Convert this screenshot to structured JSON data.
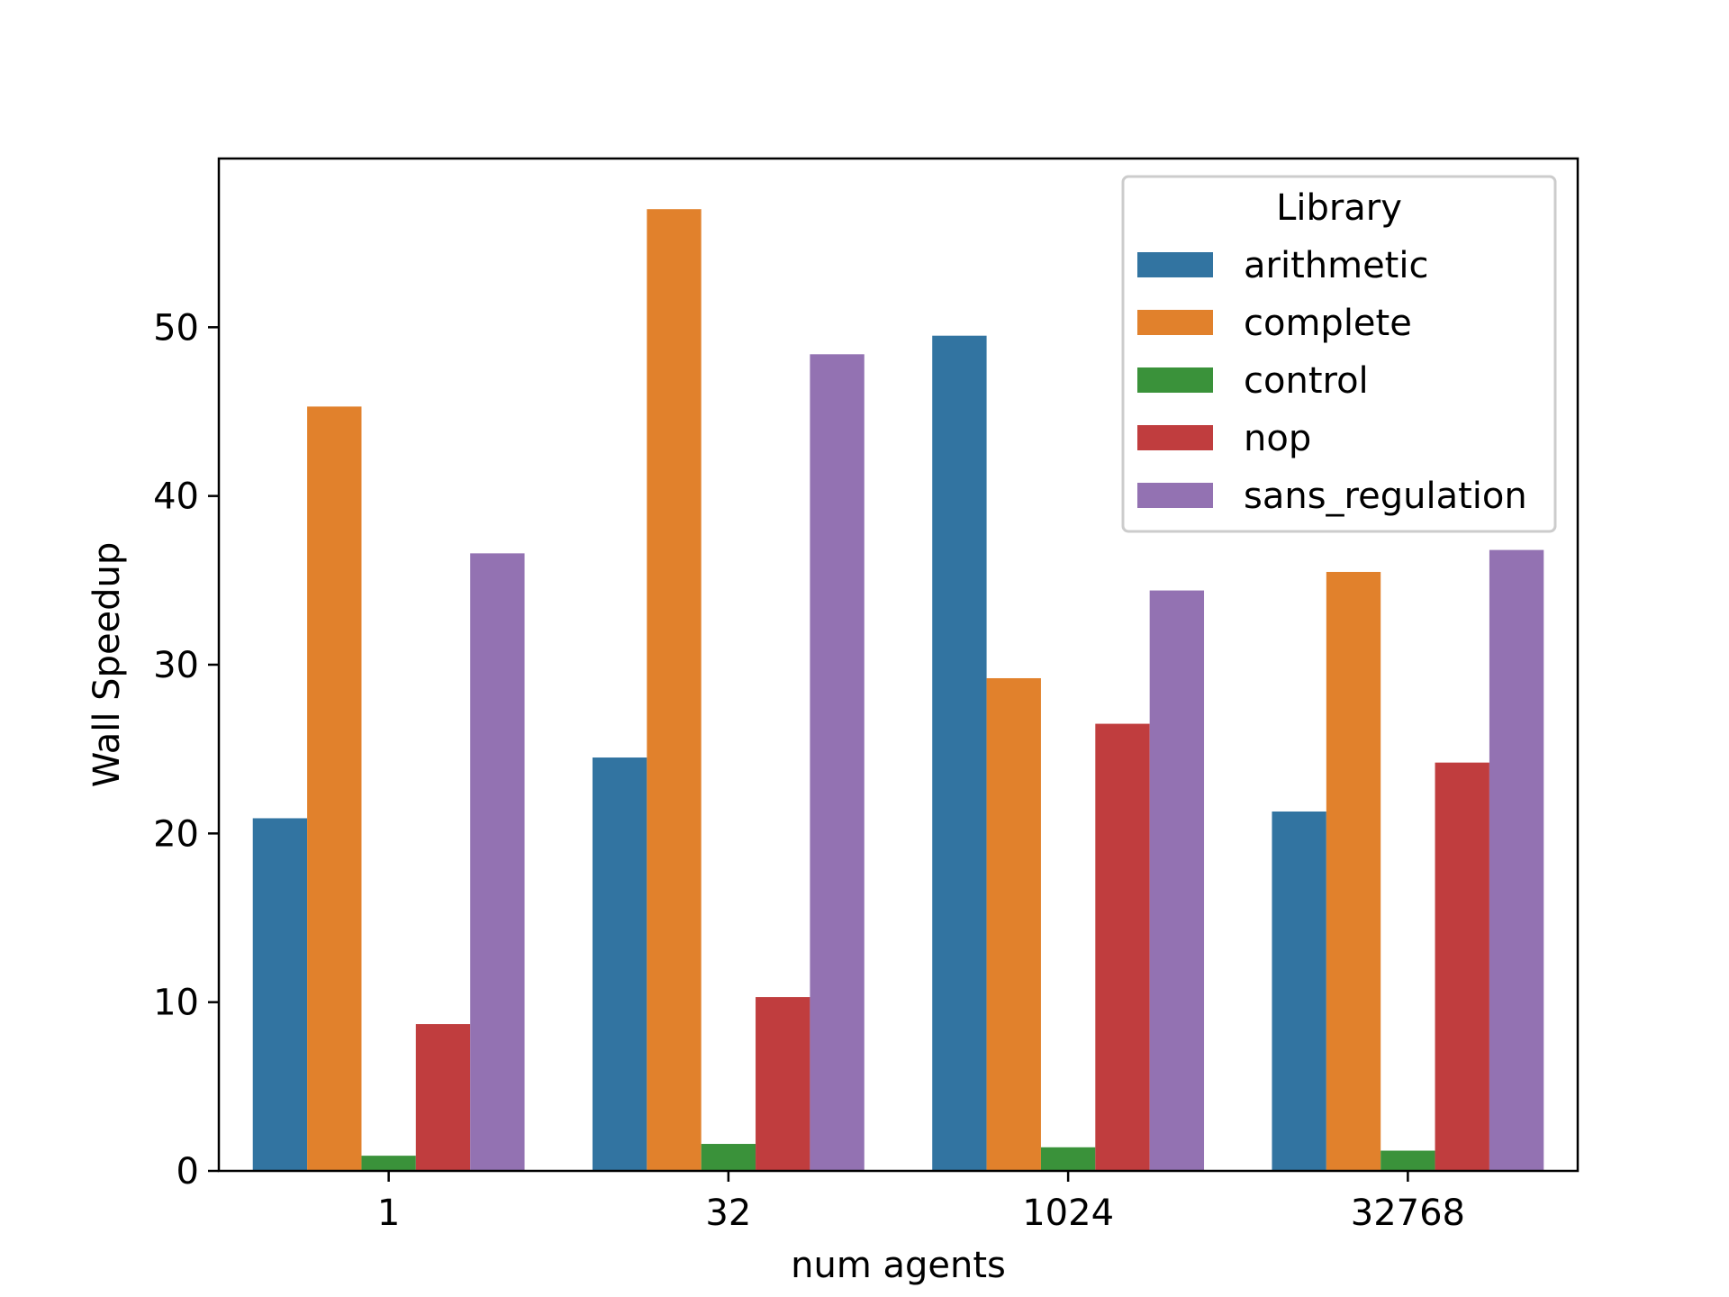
{
  "chart_data": {
    "type": "bar",
    "title": "",
    "xlabel": "num agents",
    "ylabel": "Wall Speedup",
    "categories": [
      "1",
      "32",
      "1024",
      "32768"
    ],
    "ylim": [
      0,
      60
    ],
    "yticks": [
      0,
      10,
      20,
      30,
      40,
      50
    ],
    "grid": false,
    "legend": {
      "title": "Library",
      "placement": "top-right"
    },
    "series": [
      {
        "name": "arithmetic",
        "color": "#3274a1",
        "values": [
          20.9,
          24.5,
          49.5,
          21.3
        ]
      },
      {
        "name": "complete",
        "color": "#e1812c",
        "values": [
          45.3,
          57.0,
          29.2,
          35.5
        ]
      },
      {
        "name": "control",
        "color": "#3a923a",
        "values": [
          0.9,
          1.6,
          1.4,
          1.2
        ]
      },
      {
        "name": "nop",
        "color": "#c03d3e",
        "values": [
          8.7,
          10.3,
          26.5,
          24.2
        ]
      },
      {
        "name": "sans_regulation",
        "color": "#9372b2",
        "values": [
          36.6,
          48.4,
          34.4,
          36.8
        ]
      }
    ]
  }
}
